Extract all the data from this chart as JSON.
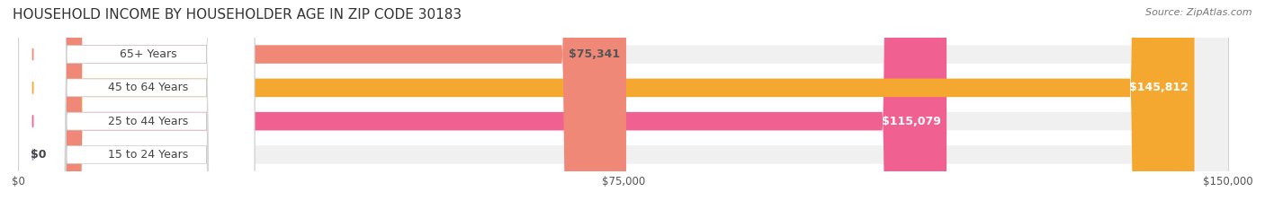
{
  "title": "HOUSEHOLD INCOME BY HOUSEHOLDER AGE IN ZIP CODE 30183",
  "source": "Source: ZipAtlas.com",
  "categories": [
    "15 to 24 Years",
    "25 to 44 Years",
    "45 to 64 Years",
    "65+ Years"
  ],
  "values": [
    0,
    115079,
    145812,
    75341
  ],
  "bar_colors": [
    "#a8a8d8",
    "#f06090",
    "#f5a830",
    "#f08878"
  ],
  "bar_bg_color": "#f0f0f0",
  "label_colors": [
    "#555555",
    "#ffffff",
    "#ffffff",
    "#555555"
  ],
  "max_value": 150000,
  "xtick_values": [
    0,
    75000,
    150000
  ],
  "xtick_labels": [
    "$0",
    "$75,000",
    "$150,000"
  ],
  "value_labels": [
    "$0",
    "$115,079",
    "$145,812",
    "$75,341"
  ],
  "background_color": "#ffffff",
  "title_fontsize": 11,
  "source_fontsize": 8,
  "bar_label_fontsize": 9,
  "tick_fontsize": 8.5
}
